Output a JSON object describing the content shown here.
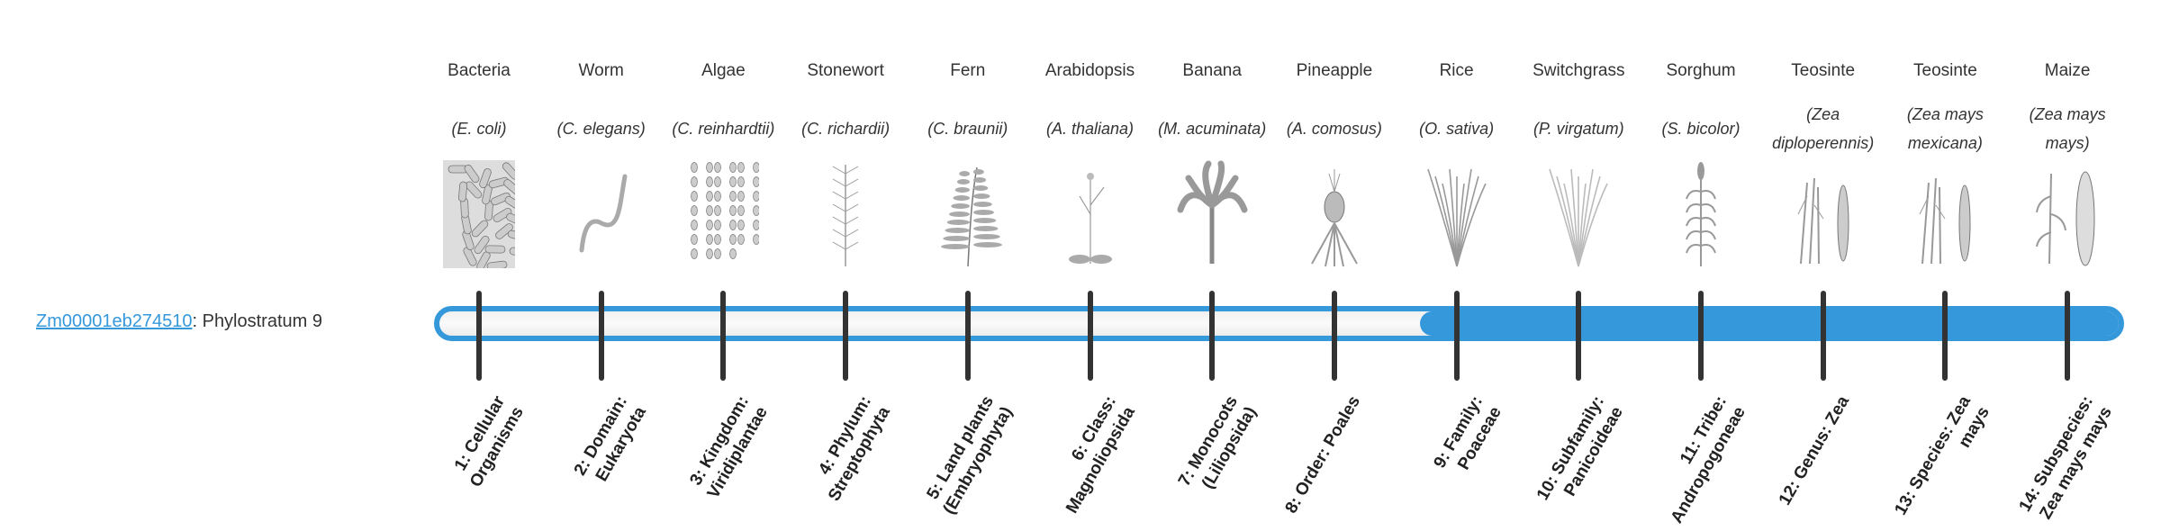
{
  "gene": {
    "id": "Zm00001eb274510",
    "suffix": ": Phylostratum 9"
  },
  "phylostratum": {
    "current": 9,
    "total": 14
  },
  "colors": {
    "accent": "#3498db",
    "tick": "#333333"
  },
  "strata": [
    {
      "common": "Bacteria",
      "sci": "(E. coli)",
      "rank": "1: Cellular Organisms",
      "icon": "bacteria-icon"
    },
    {
      "common": "Worm",
      "sci": "(C. elegans)",
      "rank": "2: Domain: Eukaryota",
      "icon": "worm-icon"
    },
    {
      "common": "Algae",
      "sci": "(C. reinhardtii)",
      "rank": "3: Kingdom: Viridiplantae",
      "icon": "algae-icon"
    },
    {
      "common": "Stonewort",
      "sci": "(C. richardii)",
      "rank": "4: Phylum: Streptophyta",
      "icon": "stonewort-icon"
    },
    {
      "common": "Fern",
      "sci": "(C. braunii)",
      "rank": "5: Land plants (Embryophyta)",
      "icon": "fern-icon"
    },
    {
      "common": "Arabidopsis",
      "sci": "(A. thaliana)",
      "rank": "6: Class: Magnoliopsida",
      "icon": "arabidopsis-icon"
    },
    {
      "common": "Banana",
      "sci": "(M. acuminata)",
      "rank": "7: Monocots (Liliopsida)",
      "icon": "banana-icon"
    },
    {
      "common": "Pineapple",
      "sci": "(A. comosus)",
      "rank": "8: Order: Poales",
      "icon": "pineapple-icon"
    },
    {
      "common": "Rice",
      "sci": "(O. sativa)",
      "rank": "9: Family: Poaceae",
      "icon": "rice-icon"
    },
    {
      "common": "Switchgrass",
      "sci": "(P. virgatum)",
      "rank": "10: Subfamily: Panicoideae",
      "icon": "switchgrass-icon"
    },
    {
      "common": "Sorghum",
      "sci": "(S. bicolor)",
      "rank": "11: Tribe: Andropogoneae",
      "icon": "sorghum-icon"
    },
    {
      "common": "Teosinte",
      "sci": "(Zea diploperennis)",
      "rank": "12: Genus: Zea",
      "icon": "teosinte-icon"
    },
    {
      "common": "Teosinte",
      "sci": "(Zea mays mexicana)",
      "rank": "13: Species: Zea mays",
      "icon": "teosinte-icon"
    },
    {
      "common": "Maize",
      "sci": "(Zea mays mays)",
      "rank": "14: Subspecies: Zea mays mays",
      "icon": "maize-icon"
    }
  ]
}
